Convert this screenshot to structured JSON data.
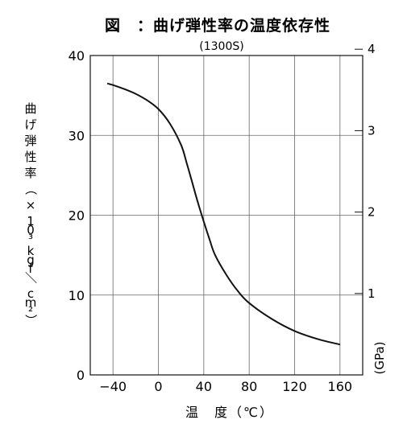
{
  "chart_data": {
    "type": "line",
    "title": "図　：曲げ弾性率の温度依存性",
    "subtitle": "(1300S)",
    "xlabel": "温　度（℃）",
    "ylabel": "曲げ弾性率（×10³ kgf／cm²）",
    "y2label": "(GPa)",
    "xlim": [
      -60,
      180
    ],
    "ylim": [
      0,
      40
    ],
    "x_ticks": [
      "−40",
      "0",
      "40",
      "80",
      "120",
      "160"
    ],
    "y_ticks": [
      "0",
      "10",
      "20",
      "30",
      "40"
    ],
    "y2_ticks": [
      "1",
      "2",
      "3",
      "4"
    ],
    "grid": true,
    "series": [
      {
        "x": [
          -45,
          -40,
          -30,
          -20,
          -10,
          0,
          10,
          20,
          25,
          30,
          35,
          40,
          45,
          50,
          60,
          70,
          80,
          100,
          120,
          140,
          160
        ],
        "y": [
          36.5,
          36.3,
          35.8,
          35.2,
          34.4,
          33.3,
          31.5,
          28.8,
          26.5,
          24.0,
          21.5,
          19.2,
          17.0,
          15.0,
          12.5,
          10.5,
          9.0,
          7.0,
          5.5,
          4.5,
          3.8
        ]
      }
    ],
    "color": "#111111"
  }
}
